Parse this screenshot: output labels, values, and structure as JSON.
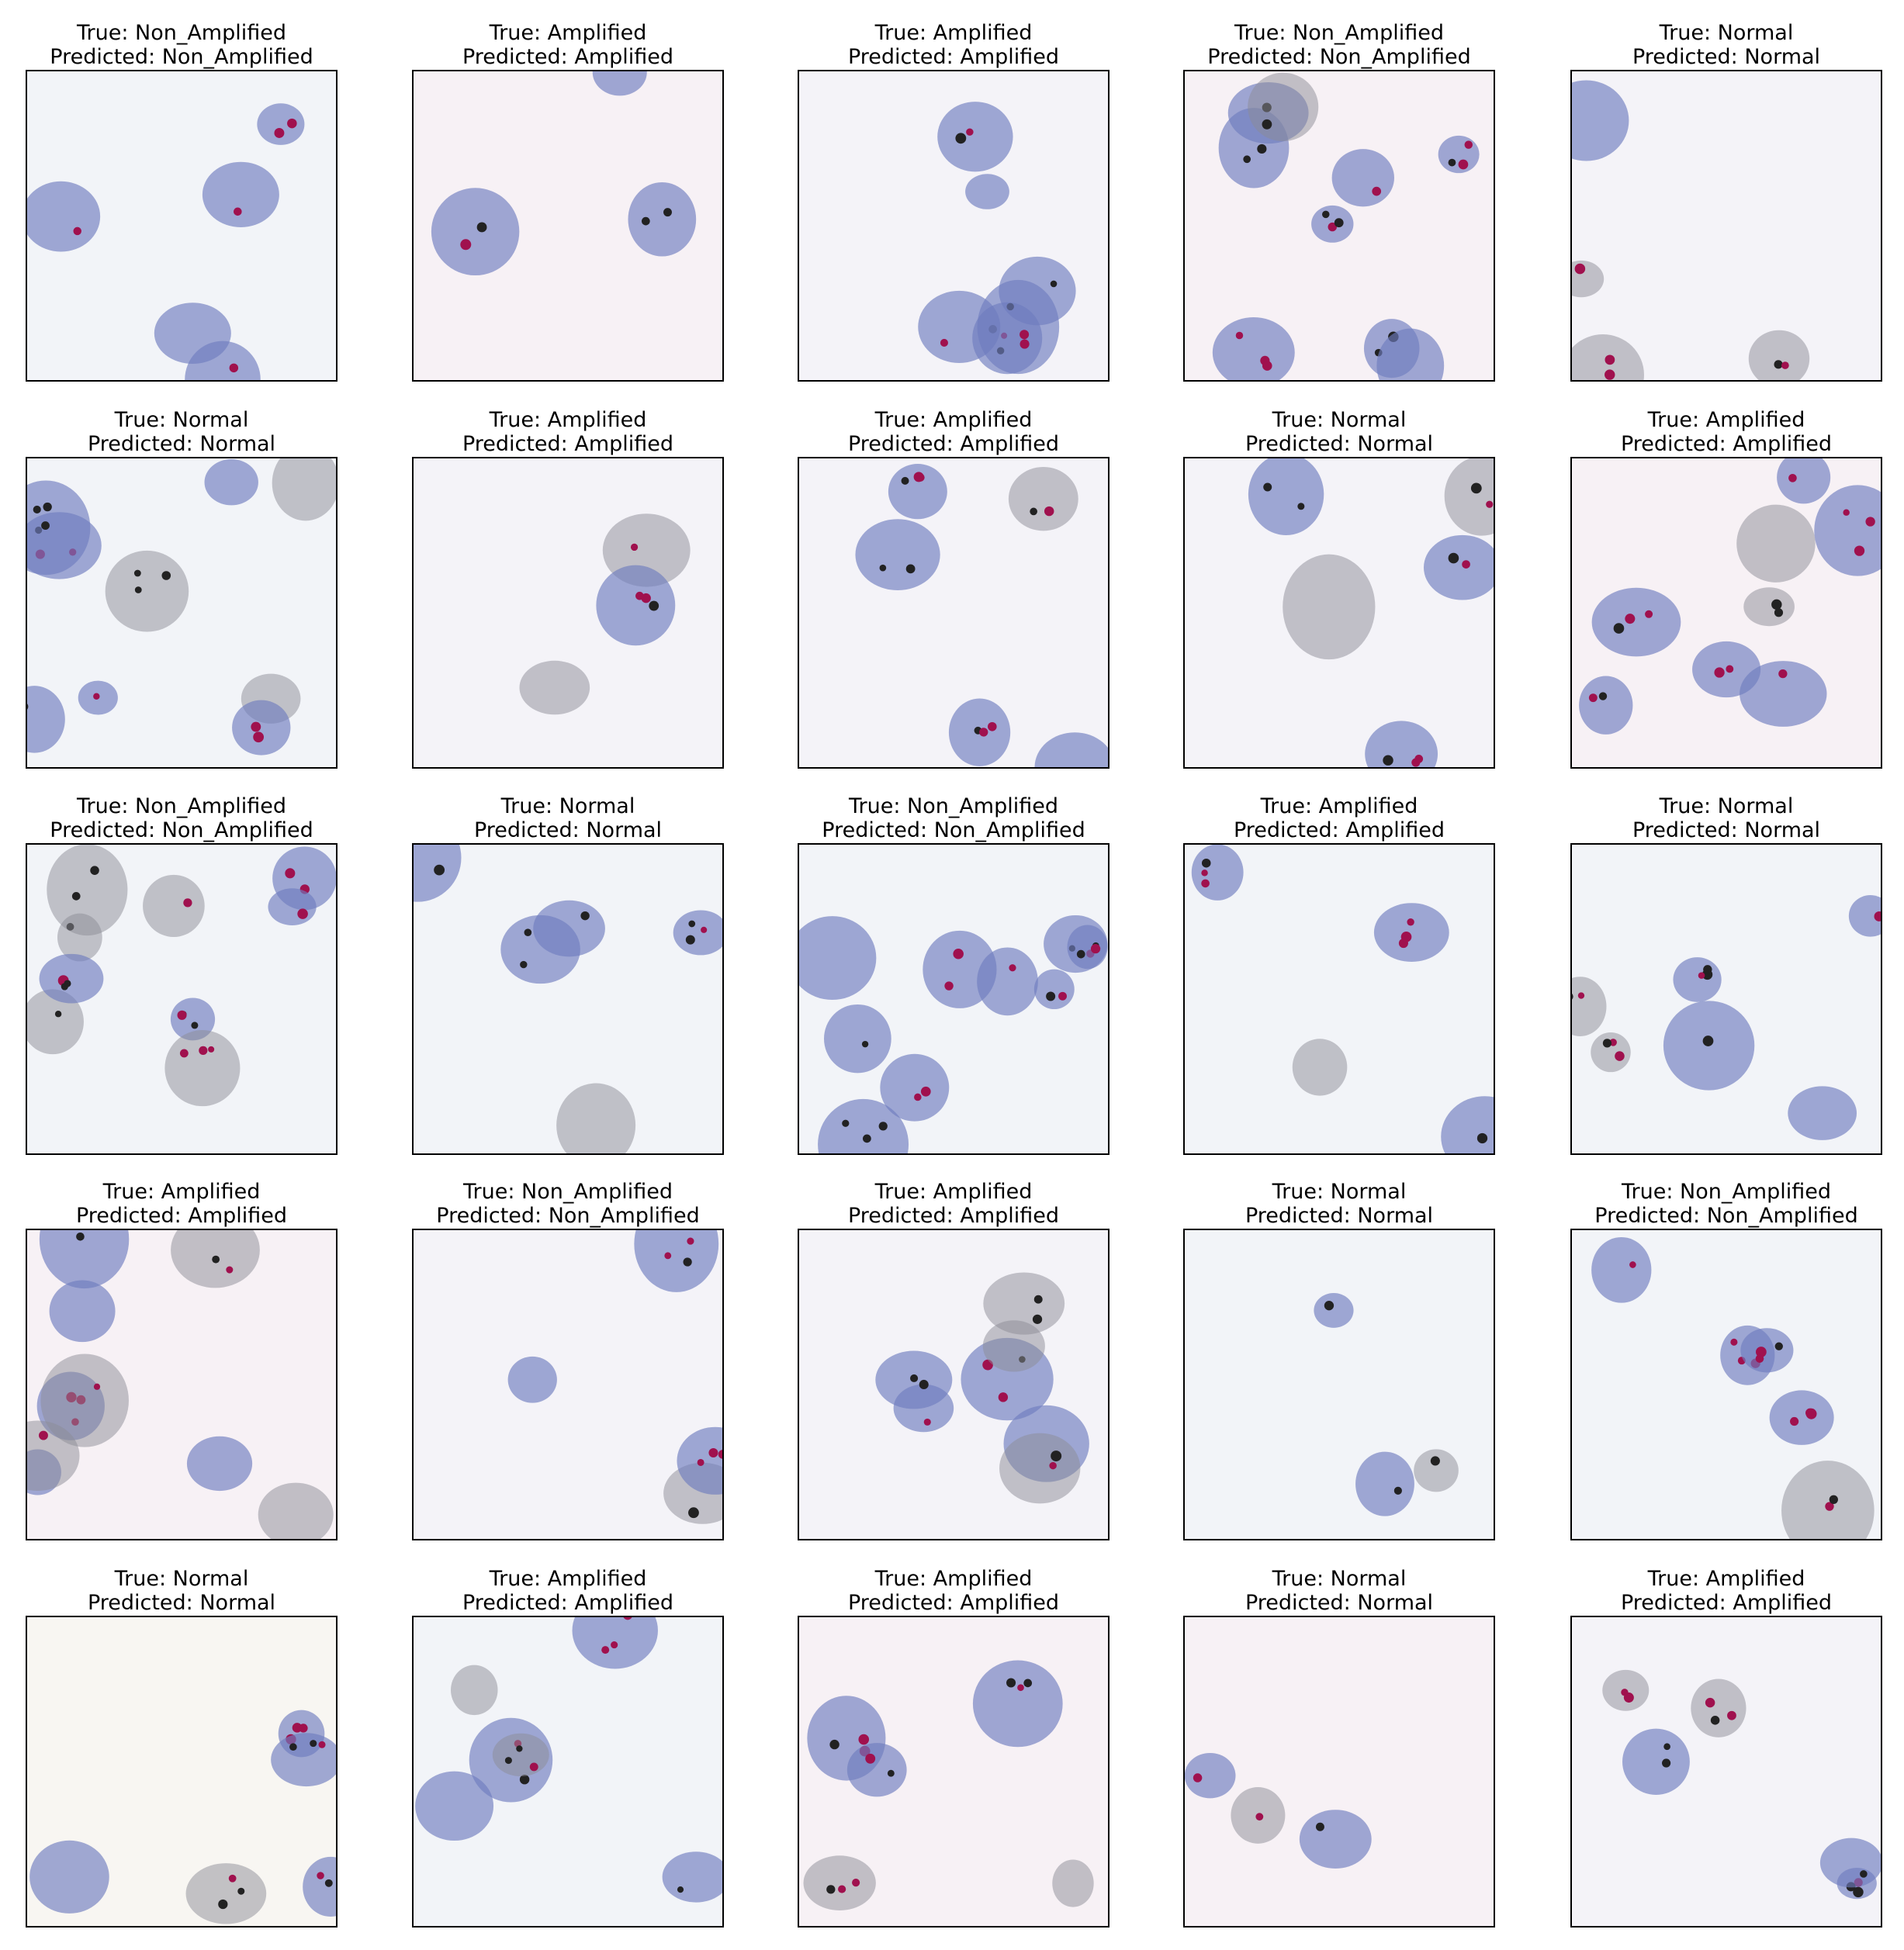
{
  "panels": [
    {
      "true_label": "True: Non_Amplified",
      "predicted_label": "Predicted: Non_Amplified"
    },
    {
      "true_label": "True: Amplified",
      "predicted_label": "Predicted: Amplified"
    },
    {
      "true_label": "True: Amplified",
      "predicted_label": "Predicted: Amplified"
    },
    {
      "true_label": "True: Non_Amplified",
      "predicted_label": "Predicted: Non_Amplified"
    },
    {
      "true_label": "True: Normal",
      "predicted_label": "Predicted: Normal"
    },
    {
      "true_label": "True: Normal",
      "predicted_label": "Predicted: Normal"
    },
    {
      "true_label": "True: Amplified",
      "predicted_label": "Predicted: Amplified"
    },
    {
      "true_label": "True: Amplified",
      "predicted_label": "Predicted: Amplified"
    },
    {
      "true_label": "True: Normal",
      "predicted_label": "Predicted: Normal"
    },
    {
      "true_label": "True: Amplified",
      "predicted_label": "Predicted: Amplified"
    },
    {
      "true_label": "True: Non_Amplified",
      "predicted_label": "Predicted: Non_Amplified"
    },
    {
      "true_label": "True: Normal",
      "predicted_label": "Predicted: Normal"
    },
    {
      "true_label": "True: Non_Amplified",
      "predicted_label": "Predicted: Non_Amplified"
    },
    {
      "true_label": "True: Amplified",
      "predicted_label": "Predicted: Amplified"
    },
    {
      "true_label": "True: Normal",
      "predicted_label": "Predicted: Normal"
    },
    {
      "true_label": "True: Amplified",
      "predicted_label": "Predicted: Amplified"
    },
    {
      "true_label": "True: Non_Amplified",
      "predicted_label": "Predicted: Non_Amplified"
    },
    {
      "true_label": "True: Amplified",
      "predicted_label": "Predicted: Amplified"
    },
    {
      "true_label": "True: Normal",
      "predicted_label": "Predicted: Normal"
    },
    {
      "true_label": "True: Non_Amplified",
      "predicted_label": "Predicted: Non_Amplified"
    },
    {
      "true_label": "True: Normal",
      "predicted_label": "Predicted: Normal"
    },
    {
      "true_label": "True: Amplified",
      "predicted_label": "Predicted: Amplified"
    },
    {
      "true_label": "True: Amplified",
      "predicted_label": "Predicted: Amplified"
    },
    {
      "true_label": "True: Normal",
      "predicted_label": "Predicted: Normal"
    },
    {
      "true_label": "True: Amplified",
      "predicted_label": "Predicted: Amplified"
    }
  ]
}
